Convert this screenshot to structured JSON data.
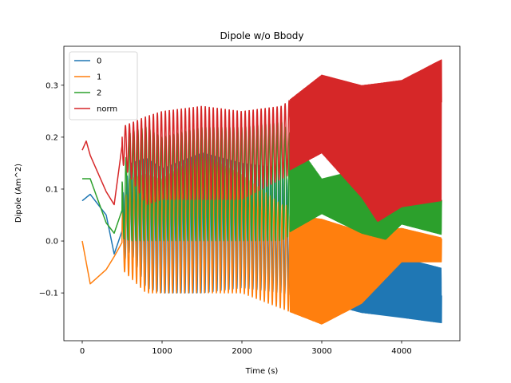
{
  "chart_data": {
    "type": "line",
    "title": "Dipole w/o Bbody",
    "xlabel": "Time (s)",
    "ylabel": "Dipole (Am^2)",
    "xlim": [
      -230,
      4730
    ],
    "ylim": [
      -0.192,
      0.375
    ],
    "xticks": [
      0,
      1000,
      2000,
      3000,
      4000
    ],
    "yticks": [
      -0.1,
      0.0,
      0.1,
      0.2,
      0.3
    ],
    "xtick_labels": [
      "0",
      "1000",
      "2000",
      "3000",
      "4000"
    ],
    "ytick_labels": [
      "−0.1",
      "0.0",
      "0.1",
      "0.2",
      "0.3"
    ],
    "grid": false,
    "legend": "top-left",
    "series": [
      {
        "name": "0",
        "color": "#1f77b4",
        "envelope_top": [
          [
            0,
            0.085
          ],
          [
            100,
            0.1
          ],
          [
            300,
            0.06
          ],
          [
            400,
            0.02
          ],
          [
            600,
            0.15
          ],
          [
            800,
            0.16
          ],
          [
            1000,
            0.14
          ],
          [
            1500,
            0.17
          ],
          [
            2000,
            0.15
          ],
          [
            2500,
            0.14
          ],
          [
            3000,
            -0.02
          ],
          [
            3500,
            -0.04
          ],
          [
            4000,
            -0.03
          ],
          [
            4500,
            -0.05
          ]
        ],
        "envelope_bottom": [
          [
            0,
            0.07
          ],
          [
            100,
            0.08
          ],
          [
            300,
            0.04
          ],
          [
            400,
            -0.07
          ],
          [
            600,
            -0.02
          ],
          [
            800,
            -0.09
          ],
          [
            1000,
            -0.1
          ],
          [
            1500,
            -0.1
          ],
          [
            2000,
            -0.09
          ],
          [
            2500,
            -0.1
          ],
          [
            3000,
            -0.12
          ],
          [
            3500,
            -0.14
          ],
          [
            4000,
            -0.15
          ],
          [
            4500,
            -0.16
          ]
        ]
      },
      {
        "name": "1",
        "color": "#ff7f0e",
        "envelope_top": [
          [
            0,
            0.02
          ],
          [
            100,
            -0.08
          ],
          [
            300,
            -0.05
          ],
          [
            400,
            -0.02
          ],
          [
            600,
            0.12
          ],
          [
            800,
            0.13
          ],
          [
            1000,
            0.12
          ],
          [
            1500,
            0.17
          ],
          [
            2000,
            0.13
          ],
          [
            2500,
            0.07
          ],
          [
            3000,
            0.06
          ],
          [
            3500,
            0.03
          ],
          [
            4000,
            0.03
          ],
          [
            4500,
            0.01
          ]
        ],
        "envelope_bottom": [
          [
            0,
            -0.02
          ],
          [
            100,
            -0.085
          ],
          [
            300,
            -0.06
          ],
          [
            400,
            -0.04
          ],
          [
            600,
            -0.07
          ],
          [
            800,
            -0.1
          ],
          [
            1000,
            -0.1
          ],
          [
            1500,
            -0.1
          ],
          [
            2000,
            -0.1
          ],
          [
            2500,
            -0.13
          ],
          [
            3000,
            -0.16
          ],
          [
            3500,
            -0.12
          ],
          [
            4000,
            -0.04
          ],
          [
            4500,
            -0.04
          ]
        ]
      },
      {
        "name": "2",
        "color": "#2ca02c",
        "envelope_top": [
          [
            0,
            0.13
          ],
          [
            100,
            0.13
          ],
          [
            300,
            0.04
          ],
          [
            400,
            0.02
          ],
          [
            600,
            0.21
          ],
          [
            800,
            0.22
          ],
          [
            1000,
            0.2
          ],
          [
            1500,
            0.22
          ],
          [
            2000,
            0.22
          ],
          [
            2500,
            0.23
          ],
          [
            3000,
            0.12
          ],
          [
            3500,
            0.14
          ],
          [
            3800,
            0.08
          ],
          [
            4000,
            0.1
          ],
          [
            4500,
            0.08
          ]
        ],
        "envelope_bottom": [
          [
            0,
            0.11
          ],
          [
            100,
            0.11
          ],
          [
            300,
            0.03
          ],
          [
            400,
            0.01
          ],
          [
            600,
            0.0
          ],
          [
            800,
            0.0
          ],
          [
            1000,
            0.0
          ],
          [
            1500,
            0.0
          ],
          [
            2000,
            0.0
          ],
          [
            2500,
            0.0
          ],
          [
            3000,
            0.05
          ],
          [
            3500,
            0.01
          ],
          [
            3800,
            0.0
          ],
          [
            4000,
            0.03
          ],
          [
            4500,
            0.01
          ]
        ]
      },
      {
        "name": "norm",
        "color": "#d62728",
        "envelope_top": [
          [
            0,
            0.19
          ],
          [
            50,
            0.205
          ],
          [
            100,
            0.18
          ],
          [
            300,
            0.1
          ],
          [
            400,
            0.08
          ],
          [
            500,
            0.22
          ],
          [
            800,
            0.24
          ],
          [
            1000,
            0.25
          ],
          [
            1500,
            0.26
          ],
          [
            2000,
            0.25
          ],
          [
            2500,
            0.26
          ],
          [
            3000,
            0.32
          ],
          [
            3500,
            0.3
          ],
          [
            4000,
            0.31
          ],
          [
            4500,
            0.35
          ]
        ],
        "envelope_bottom": [
          [
            0,
            0.16
          ],
          [
            50,
            0.18
          ],
          [
            100,
            0.15
          ],
          [
            300,
            0.09
          ],
          [
            400,
            0.06
          ],
          [
            500,
            0.15
          ],
          [
            800,
            0.07
          ],
          [
            1000,
            0.08
          ],
          [
            1500,
            0.08
          ],
          [
            2000,
            0.08
          ],
          [
            2500,
            0.12
          ],
          [
            3000,
            0.16
          ],
          [
            3500,
            0.07
          ],
          [
            3700,
            0.02
          ],
          [
            4000,
            0.05
          ],
          [
            4500,
            0.06
          ]
        ]
      }
    ]
  }
}
